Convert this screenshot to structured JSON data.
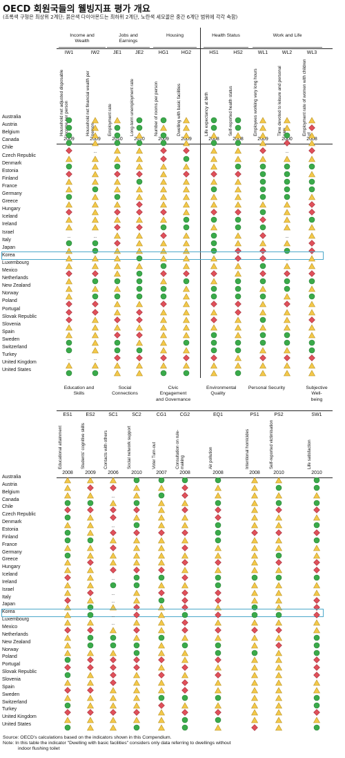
{
  "title": "OECD 회원국들의 웰빙지표 평가 개요",
  "subtitle": "(조록색 구형은 최상위 2계단; 붉은색 다이아몬드는 최하위 2계단, 노란색 세모꼴은 중간 6계단 범위에 각각 속함)",
  "legend_colors": {
    "top": "#3aaa4a",
    "bottom": "#e0505a",
    "middle": "#f3c84a",
    "highlight": "#4aa7c9"
  },
  "symbol_key": {
    "G": "green-circle",
    "R": "red-diamond",
    "Y": "yellow-triangle",
    ".": "no-data"
  },
  "highlight_country": "Korea",
  "table1": {
    "groups": [
      {
        "label": "Income and\nWealth"
      },
      {
        "label": "Jobs and\nEarnings"
      },
      {
        "label": "Housing"
      },
      {
        "label": "Health Status"
      },
      {
        "label": "Work and Life"
      }
    ],
    "indicators": [
      {
        "code": "IW1",
        "name": "Household net adjusted disposable income per person",
        "year": "2009"
      },
      {
        "code": "IW2",
        "name": "Household net financial wealth per person",
        "year": "2009"
      },
      {
        "code": "JE1",
        "name": "Employment rate",
        "year": "2010"
      },
      {
        "code": "JE2",
        "name": "Long-term unemployment rate",
        "year": "2010"
      },
      {
        "code": "HG1",
        "name": "Number of rooms per person",
        "year": "2009"
      },
      {
        "code": "HG2",
        "name": "Dwelling with basic facilities",
        "year": "2009"
      },
      {
        "code": "HS1",
        "name": "Life expectancy at birth",
        "year": "2008"
      },
      {
        "code": "HS2",
        "name": "Self-reported health status",
        "year": "2008"
      },
      {
        "code": "WL1",
        "name": "Employees working very long hours",
        "year": "2009"
      },
      {
        "code": "WL2",
        "name": "Time devoted to leisure and personal care",
        "year": "2000"
      },
      {
        "code": "WL3",
        "name": "Employment rate of women with children of",
        "year": "2008"
      }
    ],
    "rows": [
      {
        "country": "Australia",
        "v": "GYYGGYGGYYY"
      },
      {
        "country": "Austria",
        "v": "GYGGYYGGYYR"
      },
      {
        "country": "Belgium",
        "v": "GYGYGYYYYGY"
      },
      {
        "country": "Canada",
        "v": "GYGGGYGGYRY"
      },
      {
        "country": "Chile",
        "v": "R.YYRRYYR.R"
      },
      {
        "country": "Czech Republic",
        "v": "YYYYRGYYYYY"
      },
      {
        "country": "Denmark",
        "v": "GYGYYYYGGGG"
      },
      {
        "country": "Estonia",
        "v": "RYRRYRRRGGY"
      },
      {
        "country": "Finland",
        "v": "YYYGYYYYGGG"
      },
      {
        "country": "France",
        "v": "YGYYYYGYGGG"
      },
      {
        "country": "Germany",
        "v": "GYGYYYYYGGY"
      },
      {
        "country": "Greece",
        "v": "YYYRYYYYYYR"
      },
      {
        "country": "Hungary",
        "v": "RYRRRYRRGYR"
      },
      {
        "country": "Iceland",
        "v": "YYYYYGGGRYG"
      },
      {
        "country": "Ireland",
        "v": "YYRRGGYGGYY"
      },
      {
        "country": "Israel",
        "v": "..YYRYGYR.Y"
      },
      {
        "country": "Italy",
        "v": "GGRYYYGYYYR"
      },
      {
        "country": "Japan",
        "v": "YGYYYYGRRGR"
      },
      {
        "country": "Korea",
        "v": "YYYGYYYRR.Y"
      },
      {
        "country": "Luxembourg",
        "v": "YYYYGYYYGYY"
      },
      {
        "country": "Mexico",
        "v": "RRYGRRRYRRR"
      },
      {
        "country": "Netherlands",
        "v": "YGGGYGYGGGG"
      },
      {
        "country": "New Zealand",
        "v": "YYYGGYGGYGY"
      },
      {
        "country": "Norway",
        "v": "YGGGGYGGGYG"
      },
      {
        "country": "Poland",
        "v": "RRYYRYRRYRY"
      },
      {
        "country": "Portugal",
        "v": "RRYRYYYRYYY"
      },
      {
        "country": "Slovak Republic",
        "v": "RYRRYYRYGYR"
      },
      {
        "country": "Slovenia",
        "v": "YYYYYYYYYYY"
      },
      {
        "country": "Spain",
        "v": "YYRRYYGYGGY"
      },
      {
        "country": "Sweden",
        "v": "GYGYYGGGGGG"
      },
      {
        "country": "Switzerland",
        "v": "GYGGYYGGYYG"
      },
      {
        "country": "Turkey",
        "v": "..RRRRRYRRR"
      },
      {
        "country": "United Kingdom",
        "v": "YYYYYYYYYYY"
      },
      {
        "country": "United States",
        "v": "GGYYGGYGYYY"
      }
    ]
  },
  "table2": {
    "groups": [
      {
        "label": "Education and\nSkills"
      },
      {
        "label": "Social\nConnections"
      },
      {
        "label": "Civic\nEngagement\nand Governance"
      },
      {
        "label": "Environmental\nQuality"
      },
      {
        "label": "Personal Security"
      },
      {
        "label": "Subjective Well-\nbeing"
      }
    ],
    "indicators": [
      {
        "code": "ES1",
        "name": "Educational attainment",
        "year": "2008"
      },
      {
        "code": "ES2",
        "name": "Students' cognitive skills",
        "year": "2009"
      },
      {
        "code": "SC1",
        "name": "Contacts with others",
        "year": "2006"
      },
      {
        "code": "SC2",
        "name": "Social network support",
        "year": "2010"
      },
      {
        "code": "CG1",
        "name": "Voter Turn-out",
        "year": "2007"
      },
      {
        "code": "CG2",
        "name": "Consultation on rule-making",
        "year": "2008"
      },
      {
        "code": "EQ1",
        "name": "Air pollution",
        "year": "2008"
      },
      {
        "code": "PS1",
        "name": "Intentional homicides",
        "year": "2008"
      },
      {
        "code": "PS2",
        "name": "Self-reported victimisation",
        "year": "2010"
      },
      {
        "code": "SW1",
        "name": "Life satisfaction",
        "year": "2010"
      }
    ],
    "rows": [
      {
        "country": "Australia",
        "v": "YYYGGGGYYG"
      },
      {
        "country": "Austria",
        "v": "YRRYYRYYGG"
      },
      {
        "country": "Belgium",
        "v": "YY.YGRYYYY"
      },
      {
        "country": "Canada",
        "v": "GGYGYYGYGG"
      },
      {
        "country": "Chile",
        "v": "RRRRYRRYRR"
      },
      {
        "country": "Czech Republic",
        "v": "GYRYYYRYYY"
      },
      {
        "country": "Denmark",
        "v": "YY.GYYGYYG"
      },
      {
        "country": "Estonia",
        "v": "GYRRRRGRRR"
      },
      {
        "country": "Finland",
        "v": "GGYYYYGYYG"
      },
      {
        "country": "France",
        "v": "YYRYYRYYYY"
      },
      {
        "country": "Germany",
        "v": "GYYYYYYYGY"
      },
      {
        "country": "Greece",
        "v": "YRYYYRRYRR"
      },
      {
        "country": "Hungary",
        "v": "YYRRRYYYYR"
      },
      {
        "country": "Iceland",
        "v": "RY.GGRGGGG"
      },
      {
        "country": "Ireland",
        "v": "YYGGYYGYYY"
      },
      {
        "country": "Israel",
        "v": "YR.YRRRYYY"
      },
      {
        "country": "Italy",
        "v": "RY.YGRRYYR"
      },
      {
        "country": "Japan",
        "v": "YGYRYRYGYR"
      },
      {
        "country": "Korea",
        "v": "YG.RYGRGGR"
      },
      {
        "country": "Luxembourg",
        "v": "YY.YYRYYYY"
      },
      {
        "country": "Mexico",
        "v": "RRYRYRRRRY"
      },
      {
        "country": "Netherlands",
        "v": "YGGYGYYYYG"
      },
      {
        "country": "New Zealand",
        "v": "YGGGYGGYRG"
      },
      {
        "country": "Norway",
        "v": "YYYGYYGGYG"
      },
      {
        "country": "Poland",
        "v": "GRRRRYRYYR"
      },
      {
        "country": "Portugal",
        "v": "RRRRYRYYYR"
      },
      {
        "country": "Slovak Republic",
        "v": "GYRYRYRYYR"
      },
      {
        "country": "Slovenia",
        "v": "YYRYYRYYYY"
      },
      {
        "country": "Spain",
        "v": "RRYYYRYYYY"
      },
      {
        "country": "Sweden",
        "v": "YYYYGGGYYG"
      },
      {
        "country": "Switzerland",
        "v": "GYYYRYYYYG"
      },
      {
        "country": "Turkey",
        "v": "RRRRYRRYYR"
      },
      {
        "country": "United Kingdom",
        "v": "YYYYYGGYYY"
      },
      {
        "country": "United States",
        "v": "GYYGYGYRYG"
      }
    ]
  },
  "notes": [
    "Source: OECD's calculations based on the indicators shown in this Compendium.",
    "Note: In this table the indicator \"Dwelling with basic facilities\" considers only data referring to dwellings without",
    "indoor flushing toilet"
  ]
}
